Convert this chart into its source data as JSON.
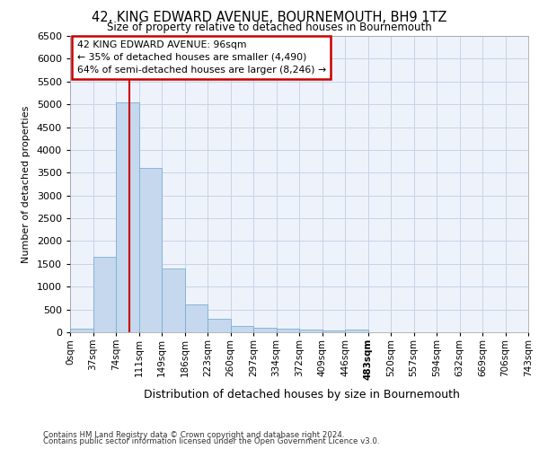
{
  "title": "42, KING EDWARD AVENUE, BOURNEMOUTH, BH9 1TZ",
  "subtitle": "Size of property relative to detached houses in Bournemouth",
  "xlabel": "Distribution of detached houses by size in Bournemouth",
  "ylabel": "Number of detached properties",
  "footer_line1": "Contains HM Land Registry data © Crown copyright and database right 2024.",
  "footer_line2": "Contains public sector information licensed under the Open Government Licence v3.0.",
  "bar_values": [
    70,
    1650,
    5050,
    3600,
    1400,
    620,
    290,
    140,
    100,
    70,
    50,
    30,
    50,
    0,
    0,
    0,
    0,
    0,
    0,
    0
  ],
  "bar_color": "#c5d8ee",
  "bar_edge_color": "#7aafd4",
  "x_labels": [
    "0sqm",
    "37sqm",
    "74sqm",
    "111sqm",
    "149sqm",
    "186sqm",
    "223sqm",
    "260sqm",
    "297sqm",
    "334sqm",
    "372sqm",
    "409sqm",
    "446sqm",
    "483sqm",
    "520sqm",
    "557sqm",
    "594sqm",
    "632sqm",
    "669sqm",
    "706sqm",
    "743sqm"
  ],
  "annotation_text": "42 KING EDWARD AVENUE: 96sqm\n← 35% of detached houses are smaller (4,490)\n64% of semi-detached houses are larger (8,246) →",
  "property_line_x": 96,
  "bin_width": 37,
  "ylim": [
    0,
    6500
  ],
  "yticks": [
    0,
    500,
    1000,
    1500,
    2000,
    2500,
    3000,
    3500,
    4000,
    4500,
    5000,
    5500,
    6000,
    6500
  ],
  "grid_color": "#c8d4e8",
  "annotation_box_color": "#cc0000",
  "background_color": "#eef2fa",
  "n_bars": 20,
  "last_data_bar_idx": 12
}
